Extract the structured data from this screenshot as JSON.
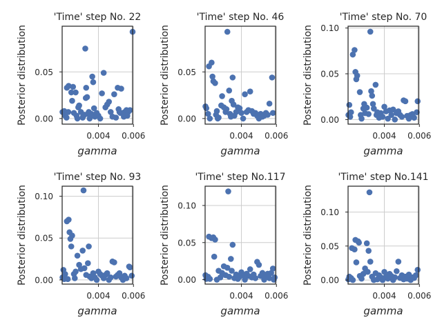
{
  "chart_data": [
    {
      "type": "scatter",
      "title": "'Time' step No. 22",
      "xlabel": "gamma",
      "ylabel": "Posterior distribution",
      "xlim": [
        0.00193,
        0.00595
      ],
      "ylim": [
        -0.006,
        0.099
      ],
      "xticks": [
        0.004,
        0.006
      ],
      "xtick_labels": [
        "0.004",
        "0.006"
      ],
      "yticks": [
        0.0,
        0.05
      ],
      "ytick_labels": [
        "0.00",
        "0.05"
      ],
      "grid": true,
      "color": "#4c72b0",
      "points": [
        [
          0.00195,
          0.007
        ],
        [
          0.00205,
          0.008
        ],
        [
          0.0021,
          0.003
        ],
        [
          0.00218,
          0.001
        ],
        [
          0.0022,
          0.033
        ],
        [
          0.00228,
          0.007
        ],
        [
          0.0023,
          0.035
        ],
        [
          0.00245,
          0.028
        ],
        [
          0.0025,
          0.019
        ],
        [
          0.00255,
          0.034
        ],
        [
          0.0026,
          0.006
        ],
        [
          0.0027,
          0.028
        ],
        [
          0.00275,
          0.003
        ],
        [
          0.0028,
          0.0
        ],
        [
          0.00285,
          0.012
        ],
        [
          0.0029,
          0.014
        ],
        [
          0.003,
          0.007
        ],
        [
          0.0031,
          0.001
        ],
        [
          0.00312,
          0.002
        ],
        [
          0.0032,
          0.004
        ],
        [
          0.00325,
          0.075
        ],
        [
          0.00328,
          0.022
        ],
        [
          0.0033,
          0.033
        ],
        [
          0.00335,
          0.023
        ],
        [
          0.0034,
          0.005
        ],
        [
          0.00345,
          0.007
        ],
        [
          0.0035,
          0.0
        ],
        [
          0.0036,
          0.005
        ],
        [
          0.00365,
          0.045
        ],
        [
          0.0037,
          0.039
        ],
        [
          0.00375,
          0.011
        ],
        [
          0.0038,
          0.002
        ],
        [
          0.0039,
          0.006
        ],
        [
          0.004,
          0.003
        ],
        [
          0.0041,
          0.0
        ],
        [
          0.0042,
          0.027
        ],
        [
          0.0043,
          0.049
        ],
        [
          0.0044,
          0.012
        ],
        [
          0.0045,
          0.015
        ],
        [
          0.0046,
          0.018
        ],
        [
          0.0047,
          0.007
        ],
        [
          0.0048,
          0.002
        ],
        [
          0.0049,
          0.026
        ],
        [
          0.005,
          0.001
        ],
        [
          0.0051,
          0.033
        ],
        [
          0.00515,
          0.01
        ],
        [
          0.0052,
          0.007
        ],
        [
          0.00525,
          0.006
        ],
        [
          0.0053,
          0.032
        ],
        [
          0.0054,
          0.006
        ],
        [
          0.0055,
          0.007
        ],
        [
          0.0056,
          0.009
        ],
        [
          0.0057,
          0.007
        ],
        [
          0.0058,
          0.009
        ],
        [
          0.00595,
          0.093
        ],
        [
          0.00545,
          0.002
        ],
        [
          0.00565,
          0.003
        ]
      ]
    },
    {
      "type": "scatter",
      "title": "'Time' step No. 46",
      "xlabel": "gamma",
      "ylabel": "Posterior distribution",
      "xlim": [
        0.00193,
        0.00595
      ],
      "ylim": [
        -0.006,
        0.099
      ],
      "xticks": [
        0.004,
        0.006
      ],
      "xtick_labels": [
        "0.004",
        "0.006"
      ],
      "yticks": [
        0.0,
        0.05
      ],
      "ytick_labels": [
        "0.00",
        "0.05"
      ],
      "grid": true,
      "color": "#4c72b0",
      "points": [
        [
          0.00195,
          0.013
        ],
        [
          0.002,
          0.011
        ],
        [
          0.0021,
          0.005
        ],
        [
          0.00215,
          0.056
        ],
        [
          0.0022,
          0.0
        ],
        [
          0.0023,
          0.06
        ],
        [
          0.00235,
          0.045
        ],
        [
          0.0024,
          0.04
        ],
        [
          0.0025,
          0.038
        ],
        [
          0.00255,
          0.004
        ],
        [
          0.0026,
          0.008
        ],
        [
          0.00265,
          0.0
        ],
        [
          0.0027,
          0.001
        ],
        [
          0.00285,
          0.014
        ],
        [
          0.0029,
          0.024
        ],
        [
          0.003,
          0.012
        ],
        [
          0.0031,
          0.007
        ],
        [
          0.00315,
          0.01
        ],
        [
          0.0032,
          0.093
        ],
        [
          0.0033,
          0.03
        ],
        [
          0.00335,
          0.005
        ],
        [
          0.0034,
          0.002
        ],
        [
          0.00345,
          0.019
        ],
        [
          0.0035,
          0.044
        ],
        [
          0.00355,
          0.015
        ],
        [
          0.0036,
          0.003
        ],
        [
          0.0037,
          0.007
        ],
        [
          0.0038,
          0.012
        ],
        [
          0.0039,
          0.011
        ],
        [
          0.004,
          0.006
        ],
        [
          0.0041,
          0.0
        ],
        [
          0.0042,
          0.026
        ],
        [
          0.0043,
          0.007
        ],
        [
          0.0044,
          0.009
        ],
        [
          0.0045,
          0.029
        ],
        [
          0.0046,
          0.008
        ],
        [
          0.0047,
          0.005
        ],
        [
          0.0048,
          0.006
        ],
        [
          0.0049,
          0.003
        ],
        [
          0.005,
          0.0
        ],
        [
          0.0051,
          0.005
        ],
        [
          0.0052,
          0.002
        ],
        [
          0.0053,
          0.003
        ],
        [
          0.0054,
          0.006
        ],
        [
          0.0055,
          0.004
        ],
        [
          0.0056,
          0.016
        ],
        [
          0.00575,
          0.044
        ],
        [
          0.0058,
          0.006
        ]
      ]
    },
    {
      "type": "scatter",
      "title": "'Time' step No. 70",
      "xlabel": "gamma",
      "ylabel": "Posterior distribution",
      "xlim": [
        0.00193,
        0.00595
      ],
      "ylim": [
        -0.005,
        0.102
      ],
      "xticks": [
        0.004,
        0.006
      ],
      "xtick_labels": [
        "0.004",
        "0.006"
      ],
      "yticks": [
        0.0,
        0.05,
        0.1
      ],
      "ytick_labels": [
        "0.00",
        "0.05",
        "0.10"
      ],
      "grid": true,
      "color": "#4c72b0",
      "points": [
        [
          0.00195,
          0.005
        ],
        [
          0.002,
          0.016
        ],
        [
          0.00205,
          0.003
        ],
        [
          0.0021,
          0.008
        ],
        [
          0.0022,
          0.071
        ],
        [
          0.0023,
          0.076
        ],
        [
          0.00235,
          0.052
        ],
        [
          0.0024,
          0.044
        ],
        [
          0.00245,
          0.048
        ],
        [
          0.0026,
          0.03
        ],
        [
          0.00265,
          0.005
        ],
        [
          0.0027,
          0.001
        ],
        [
          0.0028,
          0.012
        ],
        [
          0.00285,
          0.017
        ],
        [
          0.0029,
          0.007
        ],
        [
          0.003,
          0.013
        ],
        [
          0.0031,
          0.006
        ],
        [
          0.0032,
          0.096
        ],
        [
          0.00325,
          0.031
        ],
        [
          0.0033,
          0.026
        ],
        [
          0.00335,
          0.017
        ],
        [
          0.0034,
          0.012
        ],
        [
          0.0035,
          0.038
        ],
        [
          0.00355,
          0.005
        ],
        [
          0.0036,
          0.008
        ],
        [
          0.0037,
          0.002
        ],
        [
          0.0038,
          0.007
        ],
        [
          0.0039,
          0.003
        ],
        [
          0.004,
          0.014
        ],
        [
          0.0041,
          0.009
        ],
        [
          0.0042,
          0.001
        ],
        [
          0.0043,
          0.01
        ],
        [
          0.0044,
          0.005
        ],
        [
          0.0045,
          0.011
        ],
        [
          0.0046,
          0.0
        ],
        [
          0.0047,
          0.007
        ],
        [
          0.0048,
          0.009
        ],
        [
          0.0049,
          0.005
        ],
        [
          0.005,
          0.003
        ],
        [
          0.0051,
          0.021
        ],
        [
          0.0052,
          0.02
        ],
        [
          0.0053,
          0.004
        ],
        [
          0.0054,
          0.001
        ],
        [
          0.0055,
          0.005
        ],
        [
          0.0056,
          0.006
        ],
        [
          0.0057,
          0.002
        ],
        [
          0.0059,
          0.02
        ],
        [
          0.00585,
          0.008
        ]
      ]
    },
    {
      "type": "scatter",
      "title": "'Time' step No. 93",
      "xlabel": "gamma",
      "ylabel": "Posterior distribution",
      "xlim": [
        0.00193,
        0.00595
      ],
      "ylim": [
        -0.005,
        0.112
      ],
      "xticks": [
        0.004,
        0.006
      ],
      "xtick_labels": [
        "0.004",
        "0.006"
      ],
      "yticks": [
        0.0,
        0.05,
        0.1
      ],
      "ytick_labels": [
        "0.00",
        "0.05",
        "0.10"
      ],
      "grid": true,
      "color": "#4c72b0",
      "points": [
        [
          0.00195,
          0.003
        ],
        [
          0.002,
          0.012
        ],
        [
          0.00205,
          0.001
        ],
        [
          0.0021,
          0.007
        ],
        [
          0.0022,
          0.07
        ],
        [
          0.00225,
          0.001
        ],
        [
          0.0023,
          0.072
        ],
        [
          0.00235,
          0.057
        ],
        [
          0.0024,
          0.049
        ],
        [
          0.00245,
          0.04
        ],
        [
          0.0025,
          0.053
        ],
        [
          0.0026,
          0.007
        ],
        [
          0.00265,
          0.002
        ],
        [
          0.0027,
          0.01
        ],
        [
          0.0028,
          0.029
        ],
        [
          0.0029,
          0.018
        ],
        [
          0.003,
          0.013
        ],
        [
          0.0031,
          0.035
        ],
        [
          0.00315,
          0.107
        ],
        [
          0.0032,
          0.014
        ],
        [
          0.0033,
          0.006
        ],
        [
          0.0034,
          0.02
        ],
        [
          0.00345,
          0.04
        ],
        [
          0.0035,
          0.004
        ],
        [
          0.0036,
          0.002
        ],
        [
          0.0037,
          0.008
        ],
        [
          0.0038,
          0.003
        ],
        [
          0.0039,
          0.0
        ],
        [
          0.004,
          0.01
        ],
        [
          0.0041,
          0.007
        ],
        [
          0.0042,
          0.005
        ],
        [
          0.0043,
          0.002
        ],
        [
          0.0044,
          0.006
        ],
        [
          0.0045,
          0.008
        ],
        [
          0.0046,
          0.0
        ],
        [
          0.0047,
          0.003
        ],
        [
          0.0048,
          0.022
        ],
        [
          0.0049,
          0.021
        ],
        [
          0.005,
          0.004
        ],
        [
          0.0051,
          0.006
        ],
        [
          0.0052,
          0.008
        ],
        [
          0.0053,
          0.003
        ],
        [
          0.0054,
          0.0
        ],
        [
          0.0055,
          0.005
        ],
        [
          0.0056,
          0.002
        ],
        [
          0.00575,
          0.016
        ],
        [
          0.0058,
          0.015
        ],
        [
          0.0059,
          0.005
        ]
      ]
    },
    {
      "type": "scatter",
      "title": "'Time' step No.117",
      "xlabel": "gamma",
      "ylabel": "Posterior distribution",
      "xlim": [
        0.00193,
        0.00595
      ],
      "ylim": [
        -0.006,
        0.126
      ],
      "xticks": [
        0.004,
        0.006
      ],
      "xtick_labels": [
        "0.004",
        "0.006"
      ],
      "yticks": [
        0.0,
        0.05,
        0.1
      ],
      "ytick_labels": [
        "0.00",
        "0.05",
        "0.10"
      ],
      "grid": true,
      "color": "#4c72b0",
      "points": [
        [
          0.00195,
          0.006
        ],
        [
          0.002,
          0.001
        ],
        [
          0.0021,
          0.004
        ],
        [
          0.00215,
          0.058
        ],
        [
          0.0022,
          0.001
        ],
        [
          0.0023,
          0.056
        ],
        [
          0.0024,
          0.057
        ],
        [
          0.00245,
          0.031
        ],
        [
          0.0025,
          0.054
        ],
        [
          0.0026,
          0.0
        ],
        [
          0.0027,
          0.012
        ],
        [
          0.0028,
          0.003
        ],
        [
          0.0029,
          0.009
        ],
        [
          0.003,
          0.018
        ],
        [
          0.0031,
          0.006
        ],
        [
          0.0032,
          0.016
        ],
        [
          0.00325,
          0.119
        ],
        [
          0.0033,
          0.004
        ],
        [
          0.0034,
          0.028
        ],
        [
          0.00345,
          0.012
        ],
        [
          0.0035,
          0.047
        ],
        [
          0.0036,
          0.002
        ],
        [
          0.0037,
          0.007
        ],
        [
          0.0038,
          0.001
        ],
        [
          0.0039,
          0.004
        ],
        [
          0.004,
          0.01
        ],
        [
          0.0041,
          0.006
        ],
        [
          0.0042,
          0.0
        ],
        [
          0.0043,
          0.008
        ],
        [
          0.0044,
          0.005
        ],
        [
          0.0045,
          0.014
        ],
        [
          0.0046,
          0.003
        ],
        [
          0.0047,
          0.007
        ],
        [
          0.0048,
          0.002
        ],
        [
          0.0049,
          0.024
        ],
        [
          0.005,
          0.02
        ],
        [
          0.0051,
          0.005
        ],
        [
          0.0052,
          0.009
        ],
        [
          0.0053,
          0.0
        ],
        [
          0.0054,
          0.004
        ],
        [
          0.0055,
          0.008
        ],
        [
          0.0056,
          0.002
        ],
        [
          0.0057,
          0.009
        ],
        [
          0.0058,
          0.015
        ],
        [
          0.0059,
          0.003
        ],
        [
          0.00585,
          0.0
        ]
      ]
    },
    {
      "type": "scatter",
      "title": "'Time' step No.141",
      "xlabel": "gamma",
      "ylabel": "Posterior distribution",
      "xlim": [
        0.00193,
        0.00595
      ],
      "ylim": [
        -0.006,
        0.138
      ],
      "xticks": [
        0.004,
        0.006
      ],
      "xtick_labels": [
        "0.004",
        "0.006"
      ],
      "yticks": [
        0.0,
        0.05,
        0.1
      ],
      "ytick_labels": [
        "0.00",
        "0.05",
        "0.10"
      ],
      "grid": true,
      "color": "#4c72b0",
      "points": [
        [
          0.00195,
          0.001
        ],
        [
          0.002,
          0.005
        ],
        [
          0.0021,
          0.003
        ],
        [
          0.00215,
          0.047
        ],
        [
          0.0022,
          0.0
        ],
        [
          0.0023,
          0.045
        ],
        [
          0.00235,
          0.059
        ],
        [
          0.0024,
          0.026
        ],
        [
          0.0025,
          0.057
        ],
        [
          0.00255,
          0.055
        ],
        [
          0.0026,
          0.006
        ],
        [
          0.0027,
          0.002
        ],
        [
          0.0028,
          0.009
        ],
        [
          0.0029,
          0.017
        ],
        [
          0.003,
          0.054
        ],
        [
          0.00305,
          0.012
        ],
        [
          0.0031,
          0.043
        ],
        [
          0.00315,
          0.129
        ],
        [
          0.0032,
          0.027
        ],
        [
          0.0033,
          0.005
        ],
        [
          0.0034,
          0.0
        ],
        [
          0.0035,
          0.01
        ],
        [
          0.0036,
          0.001
        ],
        [
          0.0037,
          0.007
        ],
        [
          0.0038,
          0.004
        ],
        [
          0.0039,
          0.0
        ],
        [
          0.004,
          0.012
        ],
        [
          0.0041,
          0.005
        ],
        [
          0.0042,
          0.002
        ],
        [
          0.0043,
          0.009
        ],
        [
          0.0044,
          0.006
        ],
        [
          0.0045,
          0.0
        ],
        [
          0.0046,
          0.004
        ],
        [
          0.0047,
          0.013
        ],
        [
          0.0048,
          0.027
        ],
        [
          0.0049,
          0.003
        ],
        [
          0.005,
          0.007
        ],
        [
          0.0051,
          0.001
        ],
        [
          0.0052,
          0.005
        ],
        [
          0.0053,
          0.002
        ],
        [
          0.0054,
          0.008
        ],
        [
          0.0055,
          0.0
        ],
        [
          0.0056,
          0.004
        ],
        [
          0.0057,
          0.003
        ],
        [
          0.0058,
          0.007
        ],
        [
          0.0059,
          0.015
        ]
      ]
    }
  ]
}
